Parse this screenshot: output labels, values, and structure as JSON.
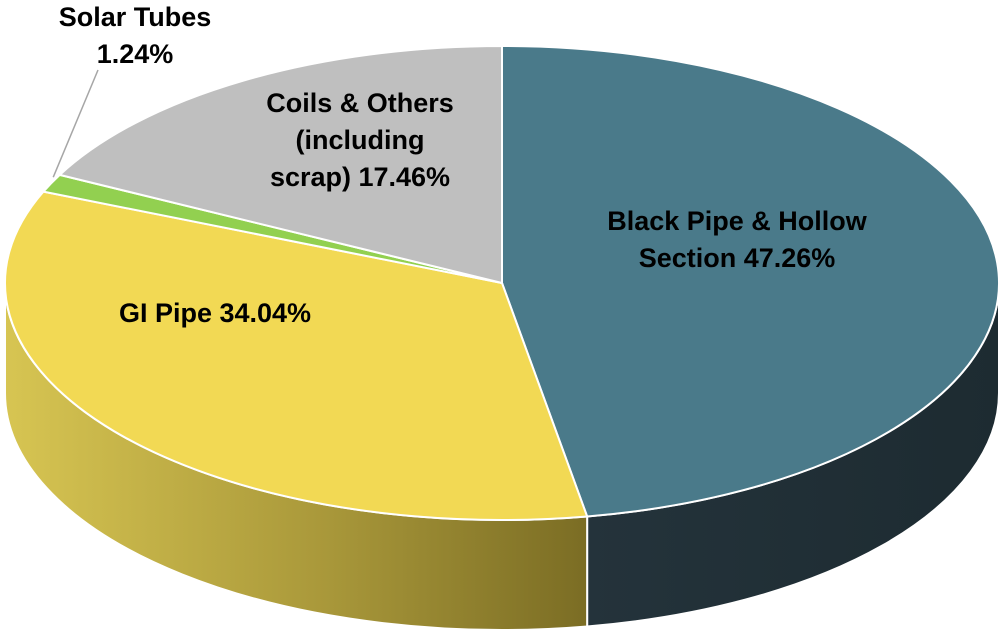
{
  "chart_data": {
    "type": "pie",
    "style": "3d",
    "slices": [
      {
        "name": "Black Pipe & Hollow Section",
        "value": 47.26,
        "color": "#4A7A8A",
        "label_lines": [
          "Black Pipe & Hollow",
          "Section  47.26%"
        ]
      },
      {
        "name": "GI Pipe",
        "value": 34.04,
        "color": "#F2D954",
        "label_lines": [
          "GI Pipe 34.04%"
        ]
      },
      {
        "name": "Solar Tubes",
        "value": 1.24,
        "color": "#92D050",
        "label_lines": [
          "Solar Tubes",
          "1.24%"
        ]
      },
      {
        "name": "Coils & Others (including scrap)",
        "value": 17.46,
        "color": "#BFBFBF",
        "label_lines": [
          "Coils & Others",
          "(including",
          "scrap) 17.46%"
        ]
      }
    ]
  }
}
